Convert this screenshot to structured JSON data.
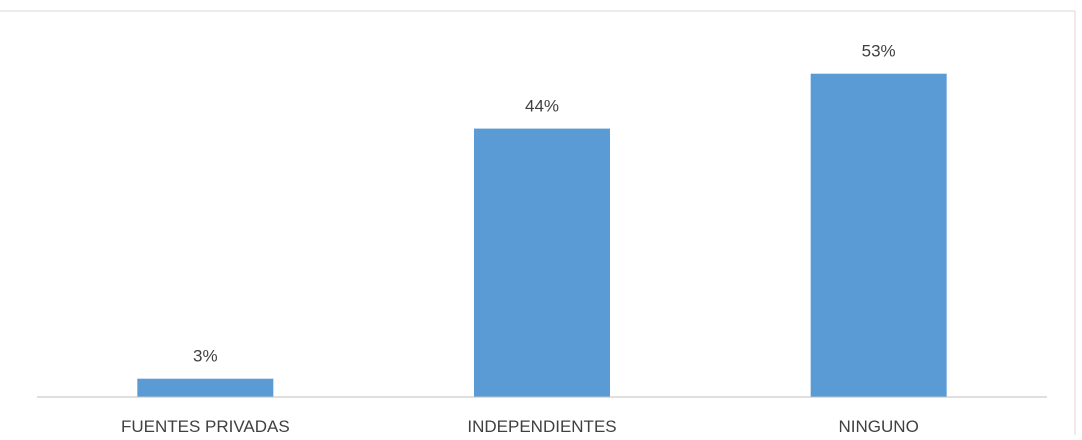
{
  "chart_data": {
    "type": "bar",
    "title": "",
    "xlabel": "",
    "ylabel": "",
    "categories": [
      "FUENTES PRIVADAS",
      "INDEPENDIENTES",
      "NINGUNO"
    ],
    "values": [
      3,
      44,
      53
    ],
    "data_labels": [
      "3%",
      "44%",
      "53%"
    ],
    "unit": "%",
    "ylim": [
      0,
      60
    ],
    "grid": false,
    "legend": "none",
    "bar_color": "#5b9bd5",
    "axis_color": "#bfbfbf",
    "text_color": "#404040"
  }
}
